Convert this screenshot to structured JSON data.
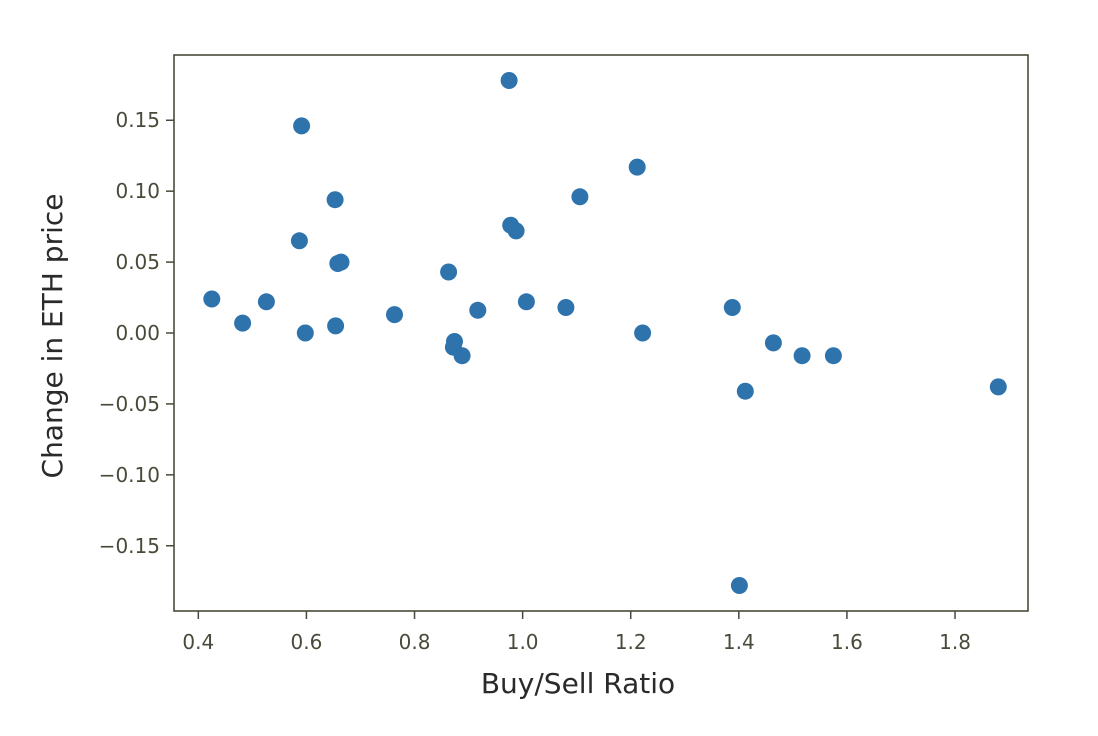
{
  "chart_data": {
    "type": "scatter",
    "title": "",
    "xlabel": "Buy/Sell Ratio",
    "ylabel": "Change in ETH price",
    "xlim": [
      0.355,
      1.935
    ],
    "ylim": [
      -0.196,
      0.196
    ],
    "xticks": [
      0.4,
      0.6,
      0.8,
      1.0,
      1.2,
      1.4,
      1.6,
      1.8
    ],
    "xtick_labels": [
      "0.4",
      "0.6",
      "0.8",
      "1.0",
      "1.2",
      "1.4",
      "1.6",
      "1.8"
    ],
    "yticks": [
      0.15,
      0.1,
      0.05,
      0.0,
      -0.05,
      -0.1,
      -0.15
    ],
    "ytick_labels": [
      "0.15",
      "0.10",
      "0.05",
      "0.00",
      "−0.05",
      "−0.10",
      "−0.15"
    ],
    "grid": false,
    "colors": {
      "marker": "#2f73ad",
      "axes": "#4a4a3a"
    },
    "x": [
      0.425,
      0.482,
      0.526,
      0.587,
      0.591,
      0.598,
      0.653,
      0.654,
      0.658,
      0.664,
      0.763,
      0.863,
      0.872,
      0.874,
      0.888,
      0.917,
      0.975,
      0.978,
      0.988,
      1.007,
      1.08,
      1.106,
      1.212,
      1.222,
      1.388,
      1.401,
      1.412,
      1.464,
      1.517,
      1.575,
      1.88
    ],
    "y": [
      0.024,
      0.007,
      0.022,
      0.065,
      0.146,
      0.0,
      0.094,
      0.005,
      0.049,
      0.05,
      0.013,
      0.043,
      -0.01,
      -0.006,
      -0.016,
      0.016,
      0.178,
      0.076,
      0.072,
      0.022,
      0.018,
      0.096,
      0.117,
      0.0,
      0.018,
      -0.178,
      -0.041,
      -0.007,
      -0.016,
      -0.016,
      -0.038
    ]
  }
}
